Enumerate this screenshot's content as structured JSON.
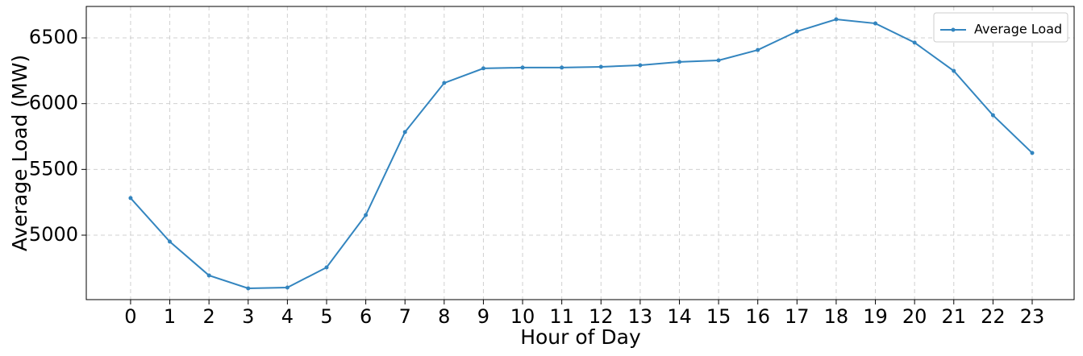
{
  "chart_data": {
    "type": "line",
    "x_label": "Hour of Day",
    "y_label": "Average Load (MW)",
    "x": [
      0,
      1,
      2,
      3,
      4,
      5,
      6,
      7,
      8,
      9,
      10,
      11,
      12,
      13,
      14,
      15,
      16,
      17,
      18,
      19,
      20,
      21,
      22,
      23
    ],
    "series": [
      {
        "name": "Average Load",
        "color": "#3385bf",
        "values": [
          5282,
          4951,
          4694,
          4596,
          4602,
          4755,
          5153,
          5784,
          6157,
          6268,
          6274,
          6274,
          6280,
          6292,
          6317,
          6329,
          6408,
          6549,
          6641,
          6610,
          6464,
          6249,
          5912,
          5625
        ]
      }
    ],
    "xlim": [
      -1.13,
      24.07
    ],
    "xticks": [
      0,
      1,
      2,
      3,
      4,
      5,
      6,
      7,
      8,
      9,
      10,
      11,
      12,
      13,
      14,
      15,
      16,
      17,
      18,
      19,
      20,
      21,
      22,
      23
    ],
    "ylim": [
      4510,
      6739
    ],
    "yticks": [
      5000,
      5500,
      6000,
      6500
    ],
    "grid": true,
    "legend": "upper right"
  }
}
